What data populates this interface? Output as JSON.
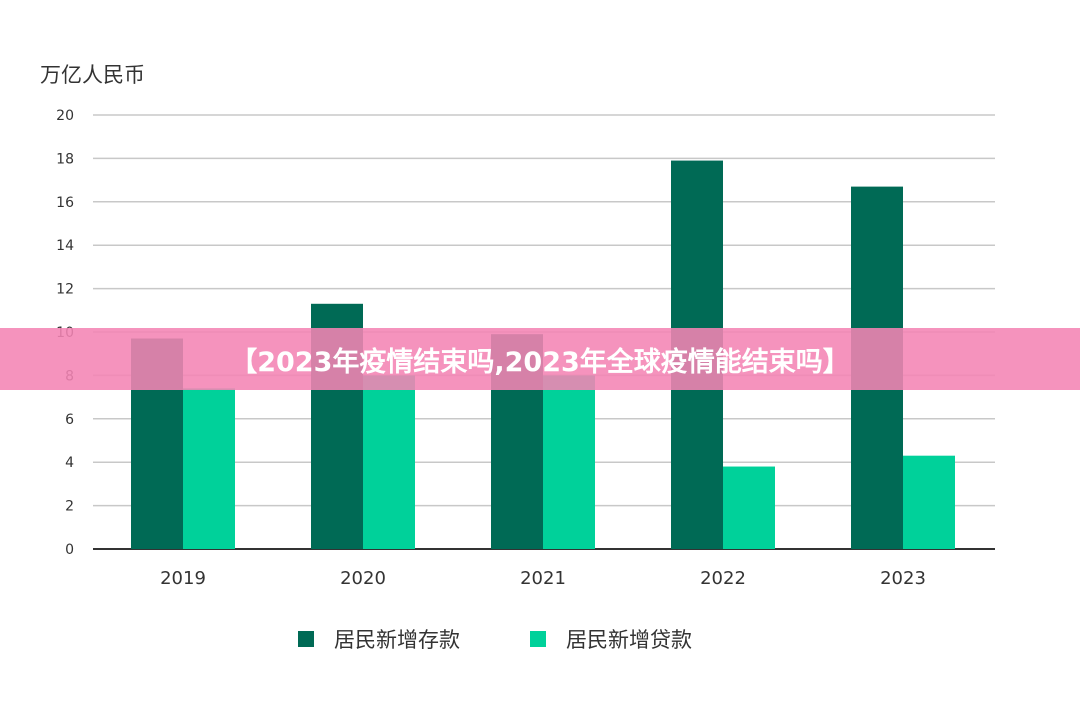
{
  "banner": {
    "title": "【2023年疫情结束吗,2023年全球疫情能结束吗】"
  },
  "chart_data": {
    "type": "bar",
    "title": "",
    "ylabel": "万亿人民币",
    "xlabel": "",
    "ylim": [
      0,
      20
    ],
    "yticks": [
      0,
      2,
      4,
      6,
      8,
      10,
      12,
      14,
      16,
      18,
      20
    ],
    "grid": true,
    "legend_position": "bottom",
    "categories": [
      "2019",
      "2020",
      "2021",
      "2022",
      "2023"
    ],
    "series": [
      {
        "name": "居民新增存款",
        "color": "#006a55",
        "values": [
          9.7,
          11.3,
          9.9,
          17.9,
          16.7
        ]
      },
      {
        "name": "居民新增贷款",
        "color": "#00d19a",
        "values": [
          7.4,
          8.0,
          8.0,
          3.8,
          4.3
        ]
      }
    ]
  }
}
